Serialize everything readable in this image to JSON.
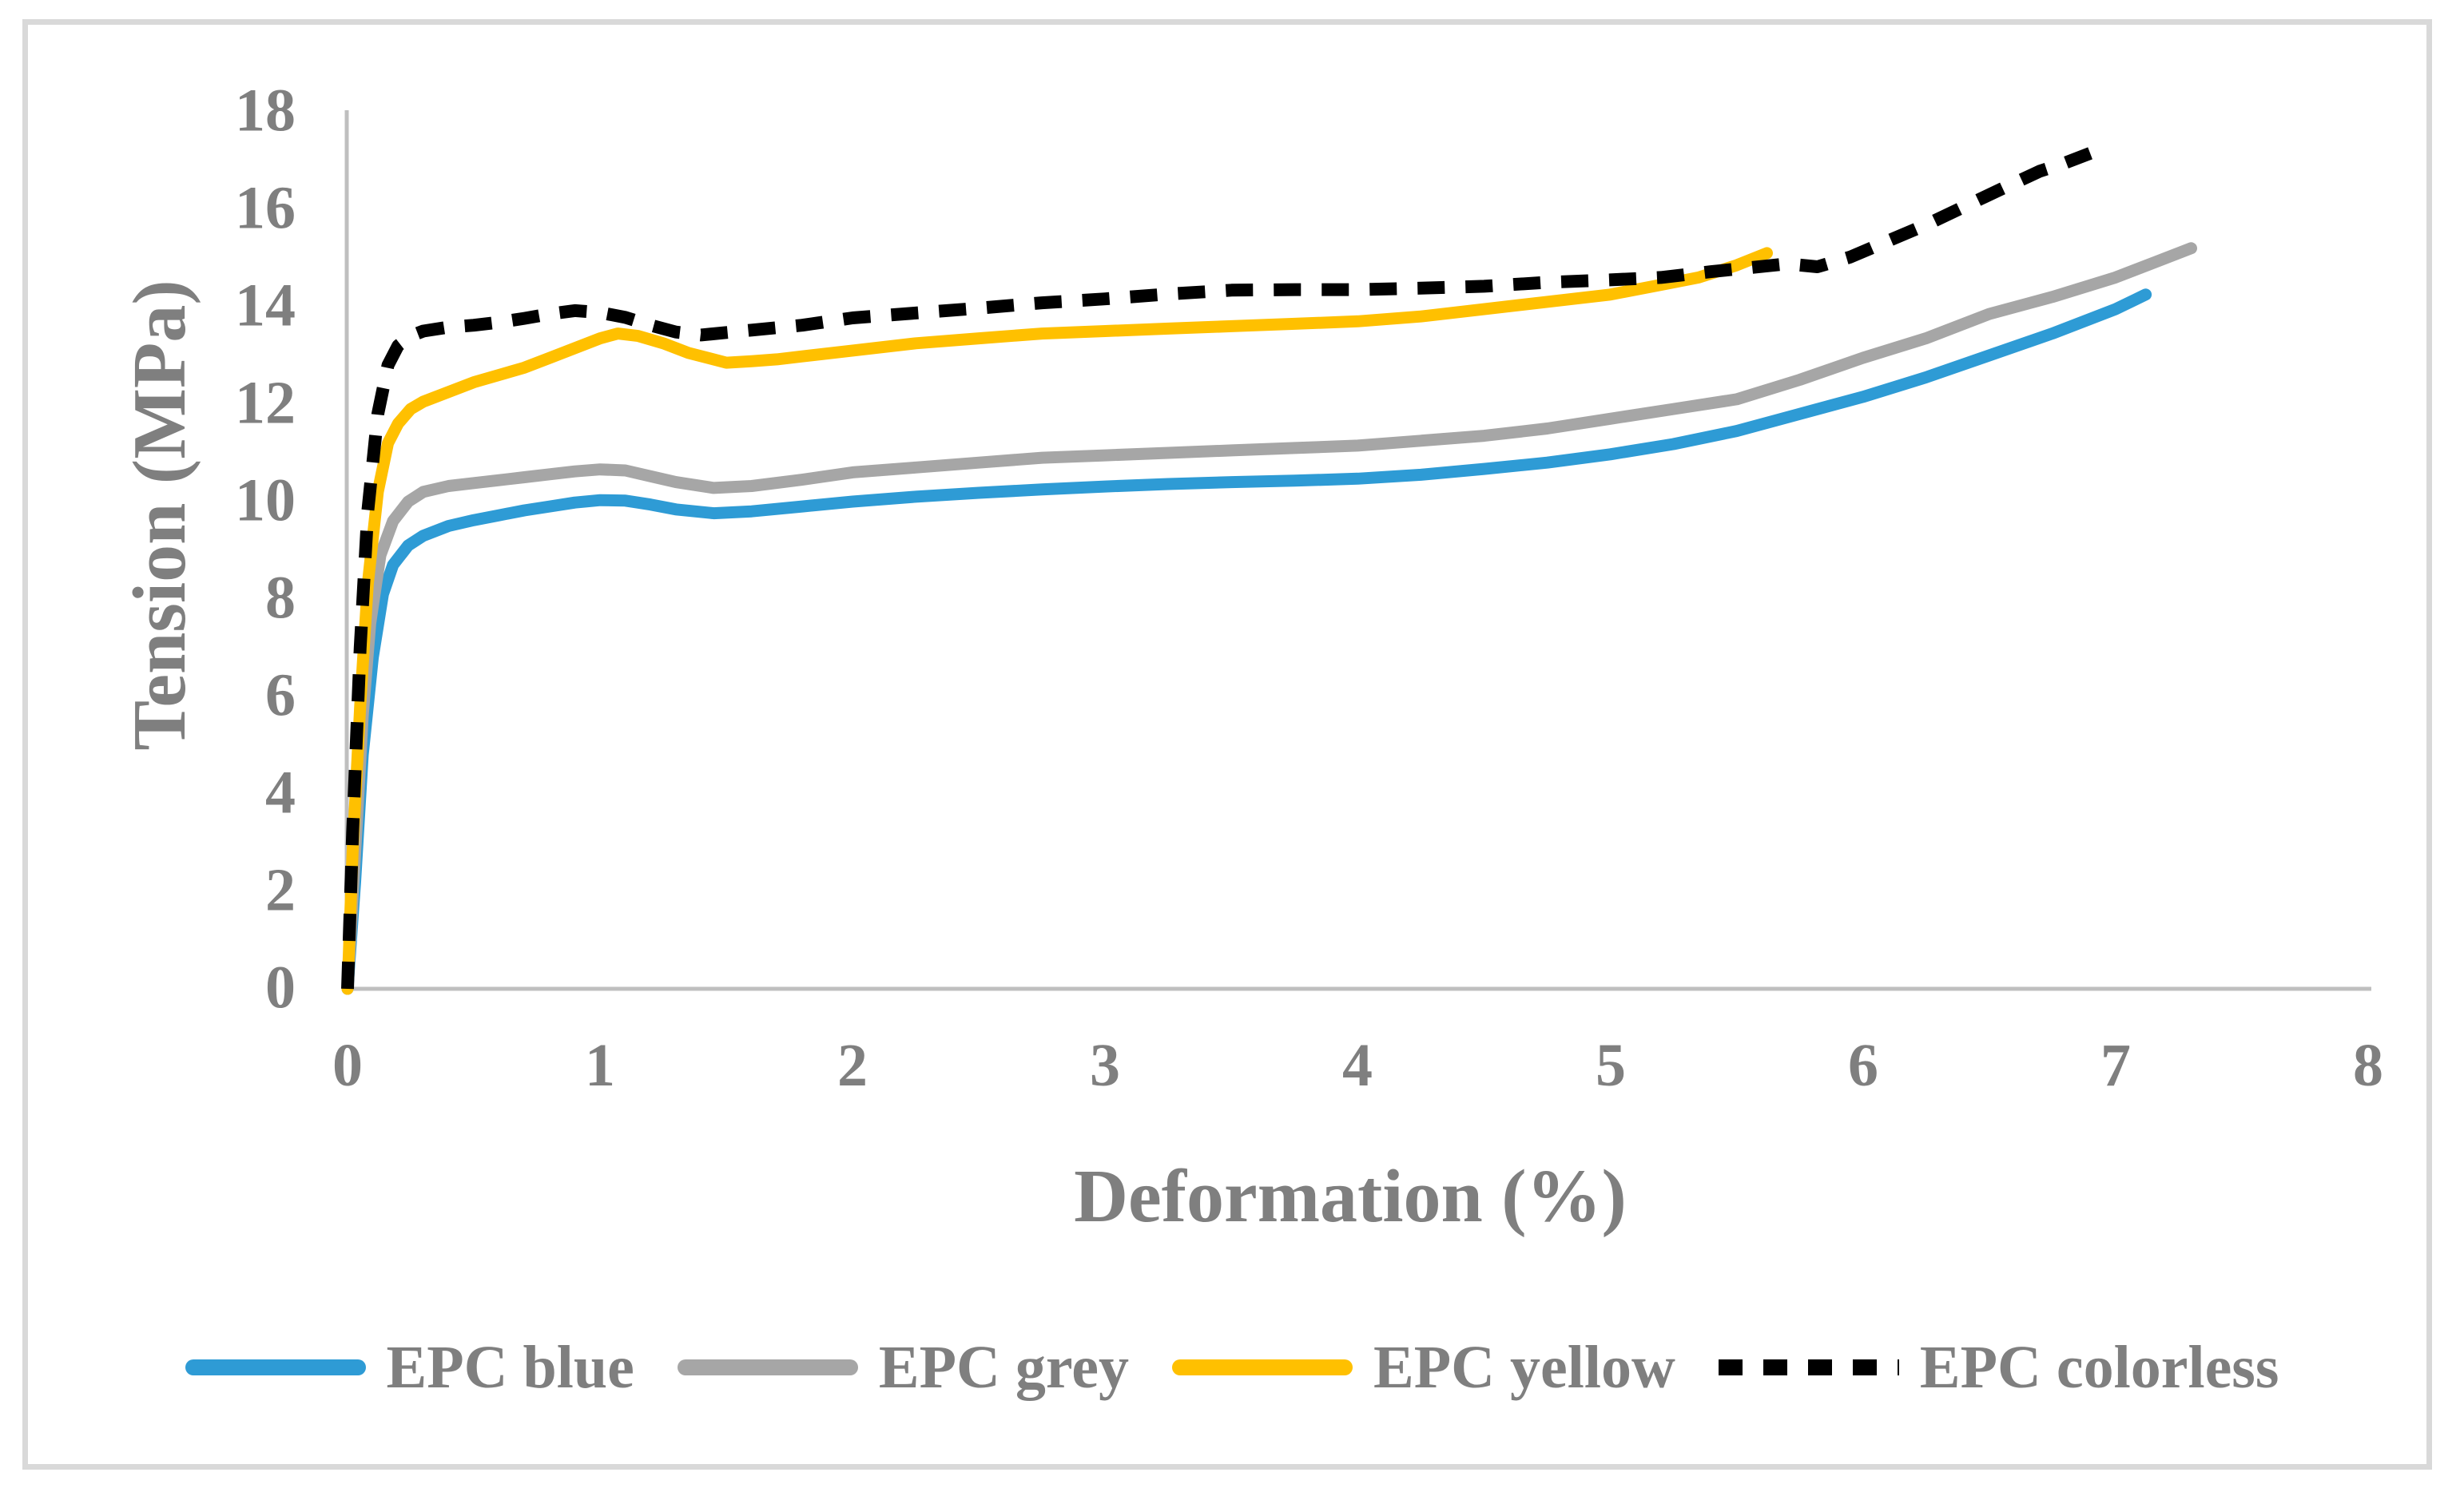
{
  "chart_data": {
    "type": "line",
    "title": "",
    "xlabel": "Deformation (%)",
    "ylabel": "Tension (MPa)",
    "xlim": [
      0,
      8
    ],
    "ylim": [
      0,
      18
    ],
    "x_ticks": [
      0,
      1,
      2,
      3,
      4,
      5,
      6,
      7,
      8
    ],
    "y_ticks": [
      0,
      2,
      4,
      6,
      8,
      10,
      12,
      14,
      16,
      18
    ],
    "grid": false,
    "legend_position": "bottom",
    "series": [
      {
        "name": "EPC blue",
        "color": "#2E9BD5",
        "style": "solid",
        "points": [
          [
            0,
            0
          ],
          [
            0.03,
            2.2
          ],
          [
            0.06,
            4.8
          ],
          [
            0.1,
            6.8
          ],
          [
            0.14,
            8.1
          ],
          [
            0.18,
            8.7
          ],
          [
            0.24,
            9.1
          ],
          [
            0.3,
            9.3
          ],
          [
            0.4,
            9.5
          ],
          [
            0.5,
            9.62
          ],
          [
            0.6,
            9.72
          ],
          [
            0.7,
            9.82
          ],
          [
            0.8,
            9.9
          ],
          [
            0.9,
            9.98
          ],
          [
            1,
            10.03
          ],
          [
            1.1,
            10.02
          ],
          [
            1.2,
            9.94
          ],
          [
            1.3,
            9.84
          ],
          [
            1.45,
            9.76
          ],
          [
            1.6,
            9.8
          ],
          [
            1.8,
            9.9
          ],
          [
            2,
            10.0
          ],
          [
            2.25,
            10.1
          ],
          [
            2.5,
            10.18
          ],
          [
            2.75,
            10.25
          ],
          [
            3,
            10.31
          ],
          [
            3.25,
            10.36
          ],
          [
            3.5,
            10.4
          ],
          [
            3.75,
            10.43
          ],
          [
            4,
            10.47
          ],
          [
            4.25,
            10.55
          ],
          [
            4.5,
            10.67
          ],
          [
            4.75,
            10.8
          ],
          [
            5,
            10.97
          ],
          [
            5.25,
            11.18
          ],
          [
            5.5,
            11.45
          ],
          [
            5.75,
            11.8
          ],
          [
            6,
            12.15
          ],
          [
            6.25,
            12.55
          ],
          [
            6.5,
            13.0
          ],
          [
            6.75,
            13.45
          ],
          [
            7,
            13.95
          ],
          [
            7.12,
            14.25
          ]
        ]
      },
      {
        "name": "EPC grey",
        "color": "#A6A6A6",
        "style": "solid",
        "points": [
          [
            0,
            0
          ],
          [
            0.03,
            2.8
          ],
          [
            0.06,
            5.6
          ],
          [
            0.09,
            7.5
          ],
          [
            0.13,
            8.9
          ],
          [
            0.18,
            9.6
          ],
          [
            0.24,
            10.0
          ],
          [
            0.3,
            10.2
          ],
          [
            0.4,
            10.32
          ],
          [
            0.5,
            10.38
          ],
          [
            0.6,
            10.44
          ],
          [
            0.7,
            10.5
          ],
          [
            0.8,
            10.56
          ],
          [
            0.9,
            10.62
          ],
          [
            1,
            10.66
          ],
          [
            1.1,
            10.64
          ],
          [
            1.2,
            10.52
          ],
          [
            1.3,
            10.4
          ],
          [
            1.45,
            10.28
          ],
          [
            1.6,
            10.32
          ],
          [
            1.8,
            10.45
          ],
          [
            2,
            10.6
          ],
          [
            2.25,
            10.7
          ],
          [
            2.5,
            10.8
          ],
          [
            2.75,
            10.9
          ],
          [
            3,
            10.95
          ],
          [
            3.25,
            11.0
          ],
          [
            3.5,
            11.05
          ],
          [
            3.75,
            11.1
          ],
          [
            4,
            11.15
          ],
          [
            4.25,
            11.25
          ],
          [
            4.5,
            11.35
          ],
          [
            4.75,
            11.5
          ],
          [
            5,
            11.7
          ],
          [
            5.25,
            11.9
          ],
          [
            5.5,
            12.1
          ],
          [
            5.75,
            12.5
          ],
          [
            6,
            12.95
          ],
          [
            6.25,
            13.35
          ],
          [
            6.5,
            13.85
          ],
          [
            6.75,
            14.2
          ],
          [
            7,
            14.6
          ],
          [
            7.15,
            14.9
          ],
          [
            7.3,
            15.2
          ]
        ]
      },
      {
        "name": "EPC yellow",
        "color": "#FFC000",
        "style": "solid",
        "points": [
          [
            0,
            0
          ],
          [
            0.02,
            2.8
          ],
          [
            0.05,
            5.8
          ],
          [
            0.08,
            8.3
          ],
          [
            0.12,
            10.2
          ],
          [
            0.16,
            11.2
          ],
          [
            0.2,
            11.6
          ],
          [
            0.25,
            11.9
          ],
          [
            0.3,
            12.05
          ],
          [
            0.4,
            12.25
          ],
          [
            0.5,
            12.45
          ],
          [
            0.6,
            12.6
          ],
          [
            0.7,
            12.75
          ],
          [
            0.8,
            12.95
          ],
          [
            0.9,
            13.15
          ],
          [
            1,
            13.35
          ],
          [
            1.07,
            13.45
          ],
          [
            1.15,
            13.4
          ],
          [
            1.25,
            13.25
          ],
          [
            1.35,
            13.05
          ],
          [
            1.5,
            12.85
          ],
          [
            1.6,
            12.88
          ],
          [
            1.7,
            12.92
          ],
          [
            1.8,
            12.98
          ],
          [
            2,
            13.1
          ],
          [
            2.25,
            13.25
          ],
          [
            2.5,
            13.35
          ],
          [
            2.75,
            13.45
          ],
          [
            3,
            13.5
          ],
          [
            3.25,
            13.55
          ],
          [
            3.5,
            13.6
          ],
          [
            3.75,
            13.65
          ],
          [
            4,
            13.7
          ],
          [
            4.25,
            13.8
          ],
          [
            4.5,
            13.95
          ],
          [
            4.75,
            14.1
          ],
          [
            5,
            14.25
          ],
          [
            5.2,
            14.45
          ],
          [
            5.35,
            14.6
          ],
          [
            5.5,
            14.85
          ],
          [
            5.62,
            15.1
          ]
        ]
      },
      {
        "name": "EPC colorless",
        "color": "#000000",
        "style": "dashed",
        "points": [
          [
            0,
            0
          ],
          [
            0.02,
            3.2
          ],
          [
            0.05,
            7.0
          ],
          [
            0.08,
            9.8
          ],
          [
            0.12,
            11.8
          ],
          [
            0.16,
            12.8
          ],
          [
            0.2,
            13.2
          ],
          [
            0.25,
            13.4
          ],
          [
            0.3,
            13.5
          ],
          [
            0.4,
            13.58
          ],
          [
            0.5,
            13.62
          ],
          [
            0.6,
            13.68
          ],
          [
            0.7,
            13.76
          ],
          [
            0.8,
            13.85
          ],
          [
            0.9,
            13.92
          ],
          [
            1,
            13.88
          ],
          [
            1.1,
            13.78
          ],
          [
            1.2,
            13.62
          ],
          [
            1.3,
            13.48
          ],
          [
            1.4,
            13.42
          ],
          [
            1.5,
            13.47
          ],
          [
            1.6,
            13.52
          ],
          [
            1.8,
            13.62
          ],
          [
            2,
            13.77
          ],
          [
            2.25,
            13.87
          ],
          [
            2.5,
            13.97
          ],
          [
            2.75,
            14.08
          ],
          [
            3,
            14.16
          ],
          [
            3.25,
            14.26
          ],
          [
            3.5,
            14.34
          ],
          [
            3.75,
            14.35
          ],
          [
            4,
            14.35
          ],
          [
            4.25,
            14.38
          ],
          [
            4.5,
            14.42
          ],
          [
            4.75,
            14.5
          ],
          [
            5,
            14.55
          ],
          [
            5.2,
            14.6
          ],
          [
            5.4,
            14.72
          ],
          [
            5.55,
            14.8
          ],
          [
            5.7,
            14.88
          ],
          [
            5.82,
            14.82
          ],
          [
            5.95,
            15.02
          ],
          [
            6.1,
            15.35
          ],
          [
            6.25,
            15.68
          ],
          [
            6.4,
            16.05
          ],
          [
            6.55,
            16.42
          ],
          [
            6.7,
            16.78
          ],
          [
            6.8,
            16.95
          ],
          [
            6.9,
            17.15
          ]
        ]
      }
    ]
  },
  "colors": {
    "axis_line": "#BFBFBF",
    "frame_border": "#D9D9D9",
    "text": "#7F7F7F",
    "background": "#FFFFFF"
  }
}
